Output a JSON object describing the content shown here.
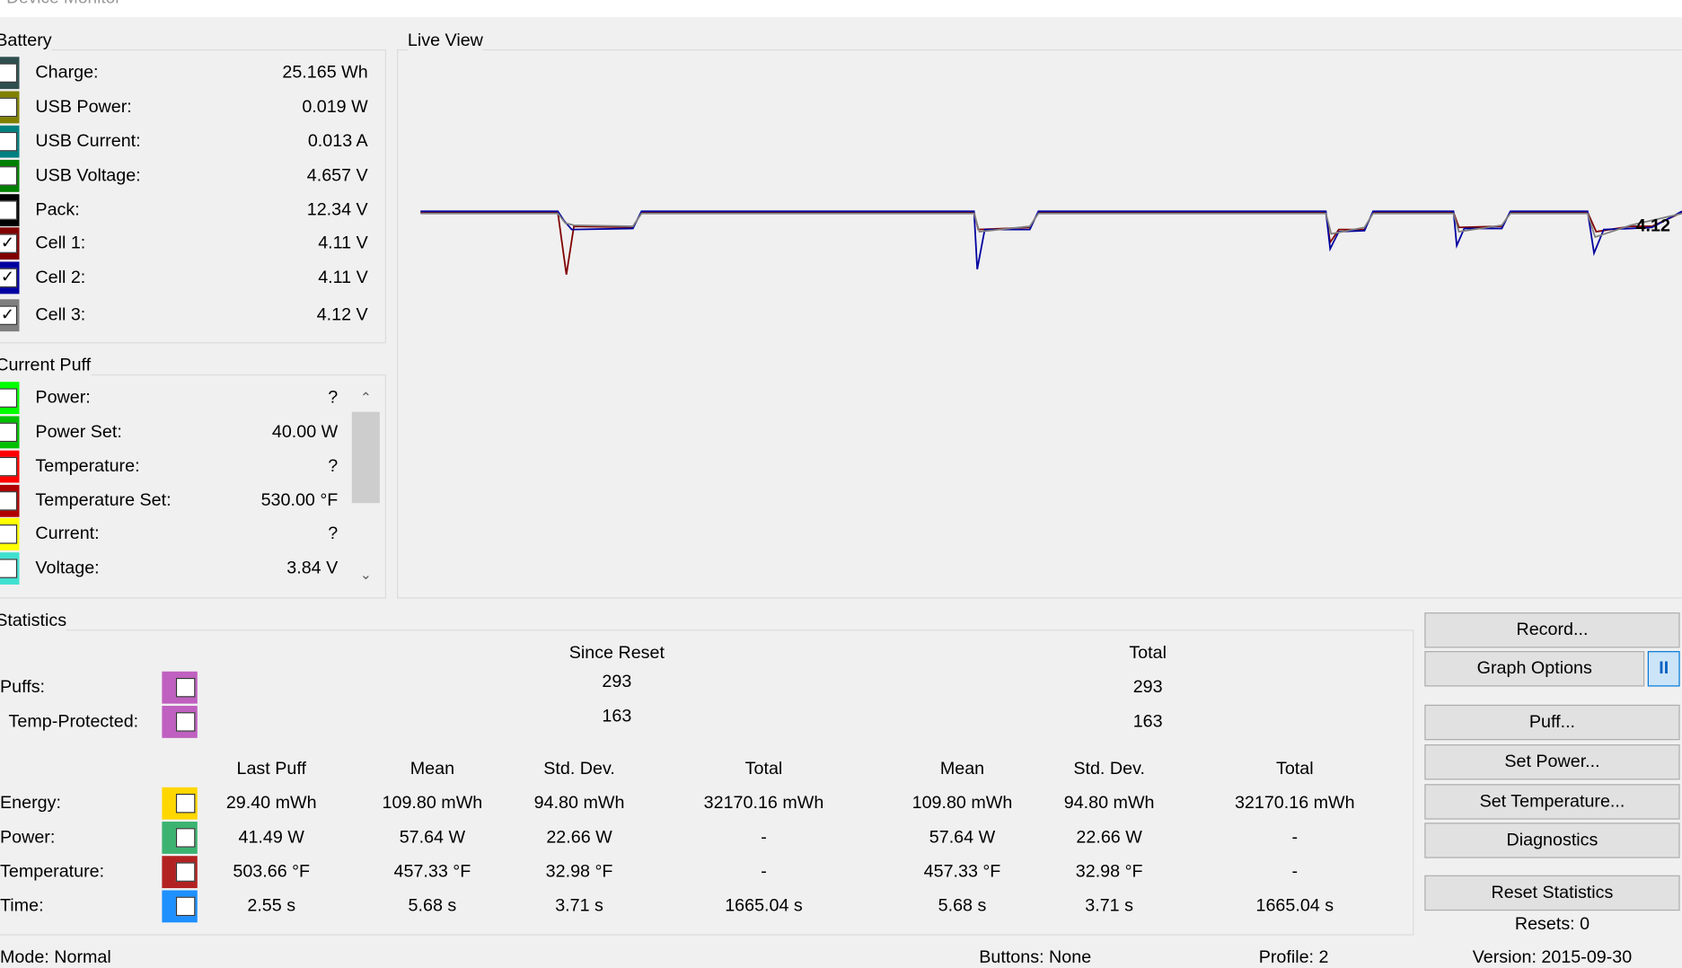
{
  "title": "Device Monitor",
  "battery": {
    "label": "Battery",
    "rows": [
      {
        "label": "Charge:",
        "value": "25.165 Wh",
        "color": "#2f4f4f",
        "checked": false
      },
      {
        "label": "USB Power:",
        "value": "0.019 W",
        "color": "#808000",
        "checked": false
      },
      {
        "label": "USB Current:",
        "value": "0.013 A",
        "color": "#008080",
        "checked": false
      },
      {
        "label": "USB Voltage:",
        "value": "4.657 V",
        "color": "#008000",
        "checked": false
      },
      {
        "label": "Pack:",
        "value": "12.34 V",
        "color": "#000000",
        "checked": false
      },
      {
        "label": "Cell 1:",
        "value": "4.11 V",
        "color": "#800000",
        "checked": true
      },
      {
        "label": "Cell 2:",
        "value": "4.11 V",
        "color": "#0000a0",
        "checked": true
      },
      {
        "label": "Cell 3:",
        "value": "4.12 V",
        "color": "#808080",
        "checked": true
      }
    ]
  },
  "current_puff": {
    "label": "Current Puff",
    "rows": [
      {
        "label": "Power:",
        "value": "?",
        "color": "#00ff00",
        "checked": false
      },
      {
        "label": "Power Set:",
        "value": "40.00 W",
        "color": "#00c000",
        "checked": false
      },
      {
        "label": "Temperature:",
        "value": "?",
        "color": "#ff0000",
        "checked": false
      },
      {
        "label": "Temperature Set:",
        "value": "530.00 °F",
        "color": "#b00000",
        "checked": false
      },
      {
        "label": "Current:",
        "value": "?",
        "color": "#ffff00",
        "checked": false
      },
      {
        "label": "Voltage:",
        "value": "3.84 V",
        "color": "#40e0d0",
        "checked": false
      }
    ]
  },
  "live_view": {
    "label": "Live View",
    "value_label": "4.12"
  },
  "statistics": {
    "label": "Statistics",
    "since_reset": "Since Reset",
    "total": "Total",
    "counts": [
      {
        "label": "Puffs:",
        "color": "#c060c0",
        "since_reset": 293,
        "total": 293
      },
      {
        "label": "Temp-Protected:",
        "color": "#c060c0",
        "since_reset": 163,
        "total": 163
      }
    ],
    "columns": [
      "Last Puff",
      "Mean",
      "Std. Dev.",
      "Total",
      "Mean",
      "Std. Dev.",
      "Total"
    ],
    "rows": [
      {
        "label": "Energy:",
        "color": "#ffd700",
        "cells": [
          "29.40 mWh",
          "109.80 mWh",
          "94.80 mWh",
          "32170.16 mWh",
          "109.80 mWh",
          "94.80 mWh",
          "32170.16 mWh"
        ]
      },
      {
        "label": "Power:",
        "color": "#3cb371",
        "cells": [
          "41.49 W",
          "57.64 W",
          "22.66 W",
          "-",
          "57.64 W",
          "22.66 W",
          "-"
        ]
      },
      {
        "label": "Temperature:",
        "color": "#b22222",
        "cells": [
          "503.66 °F",
          "457.33 °F",
          "32.98 °F",
          "-",
          "457.33 °F",
          "32.98 °F",
          "-"
        ]
      },
      {
        "label": "Time:",
        "color": "#1e90ff",
        "cells": [
          "2.55 s",
          "5.68 s",
          "3.71 s",
          "1665.04 s",
          "5.68 s",
          "3.71 s",
          "1665.04 s"
        ]
      }
    ]
  },
  "buttons": [
    "Record...",
    "Graph Options",
    "Puff...",
    "Set Power...",
    "Set Temperature...",
    "Diagnostics",
    "Reset Statistics"
  ],
  "resets": "Resets: 0",
  "status": {
    "mode": "Mode: Normal",
    "buttons": "Buttons: None",
    "profile": "Profile: 2",
    "version": "Version: 2015-09-30"
  }
}
